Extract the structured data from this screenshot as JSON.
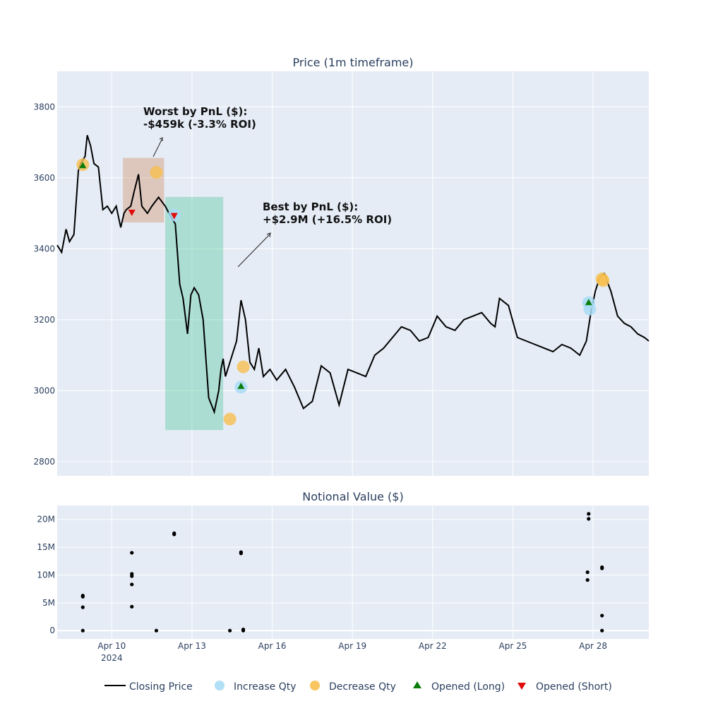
{
  "chart_data": [
    {
      "type": "line",
      "title": "Price (1m timeframe)",
      "x_date_range": [
        "2024-04-07T23:00",
        "2024-04-30T02:00"
      ],
      "ylim": [
        2760,
        3900
      ],
      "y_ticks": [
        2800,
        3000,
        3200,
        3400,
        3600,
        3800
      ],
      "grid": true,
      "series": [
        {
          "name": "Closing Price",
          "color": "#000000",
          "x": [
            "2024-04-07T23:00",
            "2024-04-08T03:00",
            "2024-04-08T07:00",
            "2024-04-08T10:00",
            "2024-04-08T14:00",
            "2024-04-08T18:00",
            "2024-04-08T20:00",
            "2024-04-09T00:00",
            "2024-04-09T02:00",
            "2024-04-09T05:00",
            "2024-04-09T08:00",
            "2024-04-09T12:00",
            "2024-04-09T16:00",
            "2024-04-09T20:00",
            "2024-04-10T00:00",
            "2024-04-10T04:00",
            "2024-04-10T08:00",
            "2024-04-10T11:00",
            "2024-04-10T13:00",
            "2024-04-10T17:00",
            "2024-04-10T20:00",
            "2024-04-11T00:00",
            "2024-04-11T03:00",
            "2024-04-11T08:00",
            "2024-04-11T12:00",
            "2024-04-11T18:00",
            "2024-04-12T00:00",
            "2024-04-12T05:00",
            "2024-04-12T09:00",
            "2024-04-12T13:00",
            "2024-04-12T16:00",
            "2024-04-12T20:00",
            "2024-04-12T23:00",
            "2024-04-13T02:00",
            "2024-04-13T06:00",
            "2024-04-13T10:00",
            "2024-04-13T15:00",
            "2024-04-13T20:00",
            "2024-04-14T00:00",
            "2024-04-14T02:00",
            "2024-04-14T04:00",
            "2024-04-14T06:00",
            "2024-04-14T08:00",
            "2024-04-14T12:00",
            "2024-04-14T16:00",
            "2024-04-14T20:00",
            "2024-04-15T00:00",
            "2024-04-15T04:00",
            "2024-04-15T08:00",
            "2024-04-15T12:00",
            "2024-04-15T16:00",
            "2024-04-15T22:00",
            "2024-04-16T04:00",
            "2024-04-16T12:00",
            "2024-04-16T20:00",
            "2024-04-17T04:00",
            "2024-04-17T12:00",
            "2024-04-17T20:00",
            "2024-04-18T04:00",
            "2024-04-18T12:00",
            "2024-04-18T20:00",
            "2024-04-19T04:00",
            "2024-04-19T12:00",
            "2024-04-19T20:00",
            "2024-04-20T04:00",
            "2024-04-20T12:00",
            "2024-04-20T20:00",
            "2024-04-21T04:00",
            "2024-04-21T12:00",
            "2024-04-21T20:00",
            "2024-04-22T04:00",
            "2024-04-22T12:00",
            "2024-04-22T20:00",
            "2024-04-23T04:00",
            "2024-04-23T12:00",
            "2024-04-23T20:00",
            "2024-04-24T04:00",
            "2024-04-24T08:00",
            "2024-04-24T12:00",
            "2024-04-24T20:00",
            "2024-04-25T04:00",
            "2024-04-25T12:00",
            "2024-04-25T20:00",
            "2024-04-26T04:00",
            "2024-04-26T12:00",
            "2024-04-26T20:00",
            "2024-04-27T04:00",
            "2024-04-27T12:00",
            "2024-04-27T18:00",
            "2024-04-27T22:00",
            "2024-04-28T02:00",
            "2024-04-28T06:00",
            "2024-04-28T10:00",
            "2024-04-28T16:00",
            "2024-04-28T22:00",
            "2024-04-29T04:00",
            "2024-04-29T10:00",
            "2024-04-29T16:00",
            "2024-04-29T22:00",
            "2024-04-30T02:00"
          ],
          "y": [
            3410,
            3390,
            3455,
            3420,
            3440,
            3620,
            3640,
            3660,
            3720,
            3690,
            3640,
            3630,
            3510,
            3520,
            3500,
            3520,
            3460,
            3500,
            3510,
            3520,
            3560,
            3610,
            3520,
            3500,
            3520,
            3545,
            3520,
            3490,
            3470,
            3300,
            3260,
            3160,
            3270,
            3290,
            3270,
            3200,
            2980,
            2940,
            3000,
            3060,
            3090,
            3040,
            3060,
            3100,
            3140,
            3255,
            3200,
            3080,
            3060,
            3120,
            3040,
            3060,
            3030,
            3060,
            3010,
            2950,
            2970,
            3070,
            3050,
            2960,
            3060,
            3050,
            3040,
            3100,
            3120,
            3150,
            3180,
            3170,
            3140,
            3150,
            3210,
            3180,
            3170,
            3200,
            3210,
            3220,
            3190,
            3180,
            3260,
            3240,
            3150,
            3140,
            3130,
            3120,
            3110,
            3130,
            3120,
            3100,
            3140,
            3220,
            3280,
            3320,
            3330,
            3280,
            3210,
            3190,
            3180,
            3160,
            3150,
            3140
          ]
        }
      ],
      "markers": {
        "increase_qty": [
          {
            "x": "2024-04-12T08:00",
            "y": 3495
          },
          {
            "x": "2024-04-14T20:00",
            "y": 3010
          },
          {
            "x": "2024-04-27T20:00",
            "y": 3248
          },
          {
            "x": "2024-04-27T21:00",
            "y": 3230
          }
        ],
        "decrease_qty": [
          {
            "x": "2024-04-08T22:00",
            "y": 3637
          },
          {
            "x": "2024-04-11T16:00",
            "y": 3615
          },
          {
            "x": "2024-04-14T10:00",
            "y": 2920
          },
          {
            "x": "2024-04-14T22:00",
            "y": 3067
          },
          {
            "x": "2024-04-28T08:00",
            "y": 3315
          },
          {
            "x": "2024-04-28T09:00",
            "y": 3310
          }
        ],
        "opened_long": [
          {
            "x": "2024-04-08T22:00",
            "y": 3635
          },
          {
            "x": "2024-04-14T20:00",
            "y": 3013
          },
          {
            "x": "2024-04-27T20:00",
            "y": 3249
          }
        ],
        "opened_short": [
          {
            "x": "2024-04-10T18:00",
            "y": 3502
          },
          {
            "x": "2024-04-12T08:00",
            "y": 3493
          }
        ]
      },
      "highlights": [
        {
          "x0": "2024-04-10T10:00",
          "x1": "2024-04-11T23:00",
          "y0": 3474,
          "y1": 3656,
          "color": "#ce8553"
        },
        {
          "x0": "2024-04-12T00:00",
          "x1": "2024-04-14T04:00",
          "y0": 2889,
          "y1": 3546,
          "color": "#40c48e"
        }
      ],
      "annotations": [
        {
          "line1": "Worst by PnL ($):",
          "line2": "-$459k (-3.3% ROI)"
        },
        {
          "line1": "Best by PnL ($):",
          "line2": "+$2.9M (+16.5% ROI)"
        }
      ]
    },
    {
      "type": "scatter",
      "title": "Notional Value ($)",
      "ylim": [
        -1500000,
        22500000
      ],
      "y_ticks": [
        0,
        5000000,
        10000000,
        15000000,
        20000000
      ],
      "y_tick_labels": [
        "0",
        "5M",
        "10M",
        "15M",
        "20M"
      ],
      "grid": true,
      "points": [
        {
          "x": "2024-04-08T22:00",
          "y": 6300000
        },
        {
          "x": "2024-04-08T22:00",
          "y": 6100000
        },
        {
          "x": "2024-04-08T22:00",
          "y": 4200000
        },
        {
          "x": "2024-04-08T22:00",
          "y": 0
        },
        {
          "x": "2024-04-10T18:00",
          "y": 14000000
        },
        {
          "x": "2024-04-10T18:00",
          "y": 10200000
        },
        {
          "x": "2024-04-10T18:00",
          "y": 9800000
        },
        {
          "x": "2024-04-10T18:00",
          "y": 8300000
        },
        {
          "x": "2024-04-10T18:00",
          "y": 4300000
        },
        {
          "x": "2024-04-11T16:00",
          "y": 0
        },
        {
          "x": "2024-04-12T08:00",
          "y": 17500000
        },
        {
          "x": "2024-04-12T08:00",
          "y": 17300000
        },
        {
          "x": "2024-04-14T10:00",
          "y": 0
        },
        {
          "x": "2024-04-14T20:00",
          "y": 14100000
        },
        {
          "x": "2024-04-14T20:00",
          "y": 13900000
        },
        {
          "x": "2024-04-14T22:00",
          "y": 200000
        },
        {
          "x": "2024-04-14T22:00",
          "y": 0
        },
        {
          "x": "2024-04-27T20:00",
          "y": 21000000
        },
        {
          "x": "2024-04-27T20:00",
          "y": 20100000
        },
        {
          "x": "2024-04-27T19:00",
          "y": 10500000
        },
        {
          "x": "2024-04-27T19:00",
          "y": 9100000
        },
        {
          "x": "2024-04-28T08:00",
          "y": 11400000
        },
        {
          "x": "2024-04-28T08:00",
          "y": 11200000
        },
        {
          "x": "2024-04-28T08:00",
          "y": 2700000
        },
        {
          "x": "2024-04-28T08:00",
          "y": 0
        }
      ]
    }
  ],
  "x_axis": {
    "ticks": [
      {
        "date": "2024-04-10T00:00",
        "label": "Apr 10",
        "sublabel": "2024"
      },
      {
        "date": "2024-04-13T00:00",
        "label": "Apr 13",
        "sublabel": ""
      },
      {
        "date": "2024-04-16T00:00",
        "label": "Apr 16",
        "sublabel": ""
      },
      {
        "date": "2024-04-19T00:00",
        "label": "Apr 19",
        "sublabel": ""
      },
      {
        "date": "2024-04-22T00:00",
        "label": "Apr 22",
        "sublabel": ""
      },
      {
        "date": "2024-04-25T00:00",
        "label": "Apr 25",
        "sublabel": ""
      },
      {
        "date": "2024-04-28T00:00",
        "label": "Apr 28",
        "sublabel": ""
      }
    ]
  },
  "legend": {
    "placement": "bottom-center",
    "items": [
      {
        "key": "line",
        "label": "Closing Price",
        "color": "#000000"
      },
      {
        "key": "increase",
        "label": "Increase Qty",
        "color": "#a8dcf5"
      },
      {
        "key": "decrease",
        "label": "Decrease Qty",
        "color": "#f7bf4f"
      },
      {
        "key": "long",
        "label": "Opened (Long)",
        "color": "#0a7d0a"
      },
      {
        "key": "short",
        "label": "Opened (Short)",
        "color": "#e00b0b"
      }
    ]
  },
  "colors": {
    "plot_bg": "#e5ecf6",
    "grid": "#ffffff",
    "text": "#2a3f5f",
    "increase": "#a8dcf5",
    "decrease": "#f7bf4f",
    "long": "#0a7d0a",
    "short": "#e00b0b"
  }
}
